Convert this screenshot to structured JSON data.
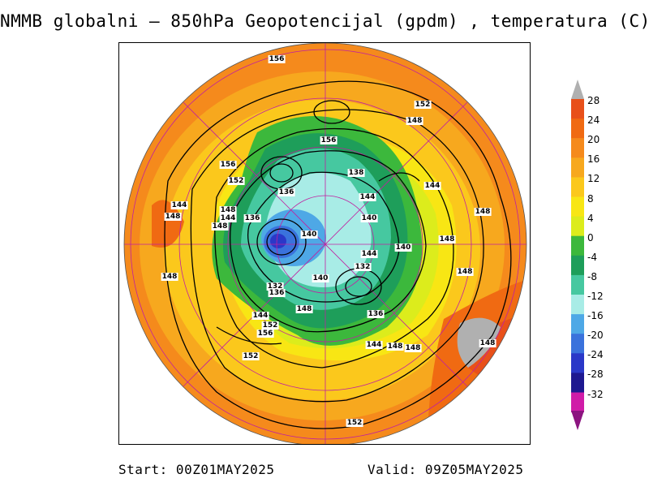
{
  "title": "NMMB globalni – 850hPa Geopotencijal (gpdm) , temperatura (C)",
  "footer": {
    "start": "Start: 00Z01MAY2025",
    "valid": "Valid: 09Z05MAY2025"
  },
  "legend": {
    "ticks": [
      "28",
      "24",
      "20",
      "16",
      "12",
      "8",
      "4",
      "0",
      "-4",
      "-8",
      "-12",
      "-16",
      "-20",
      "-24",
      "-28",
      "-32"
    ],
    "colors": [
      "#e8501a",
      "#f06a12",
      "#f58a1c",
      "#f7a81e",
      "#fbc81c",
      "#f8e614",
      "#dcec1c",
      "#3cb83c",
      "#1e9e5a",
      "#46c8a0",
      "#a8ece6",
      "#4ea8e6",
      "#3a72dc",
      "#2a38c8",
      "#1e1890",
      "#d01ca8"
    ],
    "top_arrow_color": "#b0b0b0",
    "bottom_arrow_color": "#8c1480"
  },
  "contour_labels": [
    {
      "text": "156"
    },
    {
      "text": "152"
    },
    {
      "text": "148"
    },
    {
      "text": "156"
    },
    {
      "text": "156"
    },
    {
      "text": "152"
    },
    {
      "text": "136"
    },
    {
      "text": "138"
    },
    {
      "text": "144"
    },
    {
      "text": "144"
    },
    {
      "text": "148"
    },
    {
      "text": "144"
    },
    {
      "text": "148"
    },
    {
      "text": "148"
    },
    {
      "text": "144"
    },
    {
      "text": "140"
    },
    {
      "text": "136"
    },
    {
      "text": "140"
    },
    {
      "text": "148"
    },
    {
      "text": "140"
    },
    {
      "text": "144"
    },
    {
      "text": "148"
    },
    {
      "text": "132"
    },
    {
      "text": "148"
    },
    {
      "text": "148"
    },
    {
      "text": "132"
    },
    {
      "text": "136"
    },
    {
      "text": "140"
    },
    {
      "text": "148"
    },
    {
      "text": "136"
    },
    {
      "text": "144"
    },
    {
      "text": "152"
    },
    {
      "text": "156"
    },
    {
      "text": "144"
    },
    {
      "text": "148"
    },
    {
      "text": "148"
    },
    {
      "text": "148"
    },
    {
      "text": "152"
    },
    {
      "text": "152"
    }
  ]
}
